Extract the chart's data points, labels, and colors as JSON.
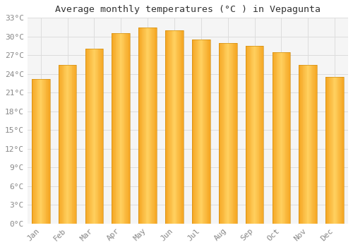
{
  "title": "Average monthly temperatures (°C ) in Vepagunta",
  "months": [
    "Jan",
    "Feb",
    "Mar",
    "Apr",
    "May",
    "Jun",
    "Jul",
    "Aug",
    "Sep",
    "Oct",
    "Nov",
    "Dec"
  ],
  "values": [
    23.2,
    25.5,
    28.0,
    30.5,
    31.5,
    31.0,
    29.5,
    29.0,
    28.5,
    27.5,
    25.5,
    23.5
  ],
  "bar_color_left": "#F5A623",
  "bar_color_center": "#FFD060",
  "bar_color_right": "#F5A623",
  "background_color": "#ffffff",
  "plot_bg_color": "#f5f5f5",
  "grid_color": "#dddddd",
  "ylim": [
    0,
    33
  ],
  "ytick_step": 3,
  "title_fontsize": 9.5,
  "tick_fontsize": 8,
  "tick_color": "#888888",
  "title_color": "#333333"
}
